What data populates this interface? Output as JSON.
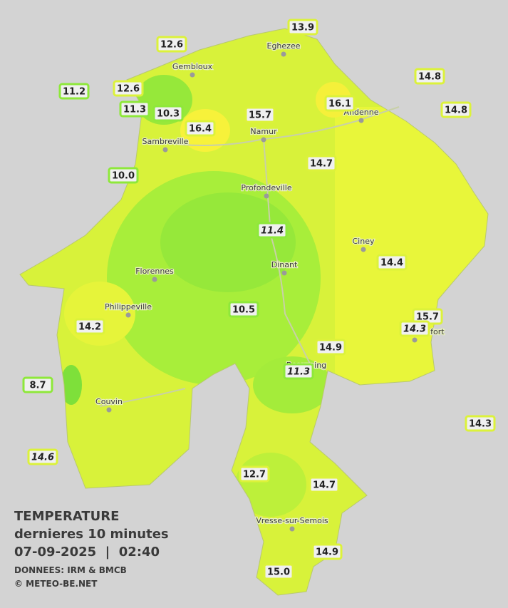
{
  "stations": [
    "13.9",
    "12.6",
    "14.8",
    "11.2",
    "12.6",
    "16.1",
    "14.8",
    "11.3",
    "10.3",
    "15.7",
    "16.4",
    "14.7",
    "10.0",
    "11.4",
    "14.4",
    "10.5",
    "15.7",
    "14.3",
    "14.2",
    "14.9",
    "11.3",
    "8.7",
    "14.3",
    "14.6",
    "12.7",
    "14.7",
    "14.9",
    "15.0"
  ],
  "cities": [
    "Eghezee",
    "Gembloux",
    "Andenne",
    "Namur",
    "Sambreville",
    "Profondeville",
    "Ciney",
    "Dinant",
    "Florennes",
    "Philippeville",
    "Rochefort",
    "Beauraing",
    "Couvin",
    "Vresse-sur-Semois"
  ],
  "legend": {
    "title": "TEMPERATURE",
    "period": "dernieres 10 minutes",
    "datetime": "07-09-2025  |  02:40",
    "source": "DONNEES: IRM & BMCB",
    "copyright": "© METEO-BE.NET"
  }
}
